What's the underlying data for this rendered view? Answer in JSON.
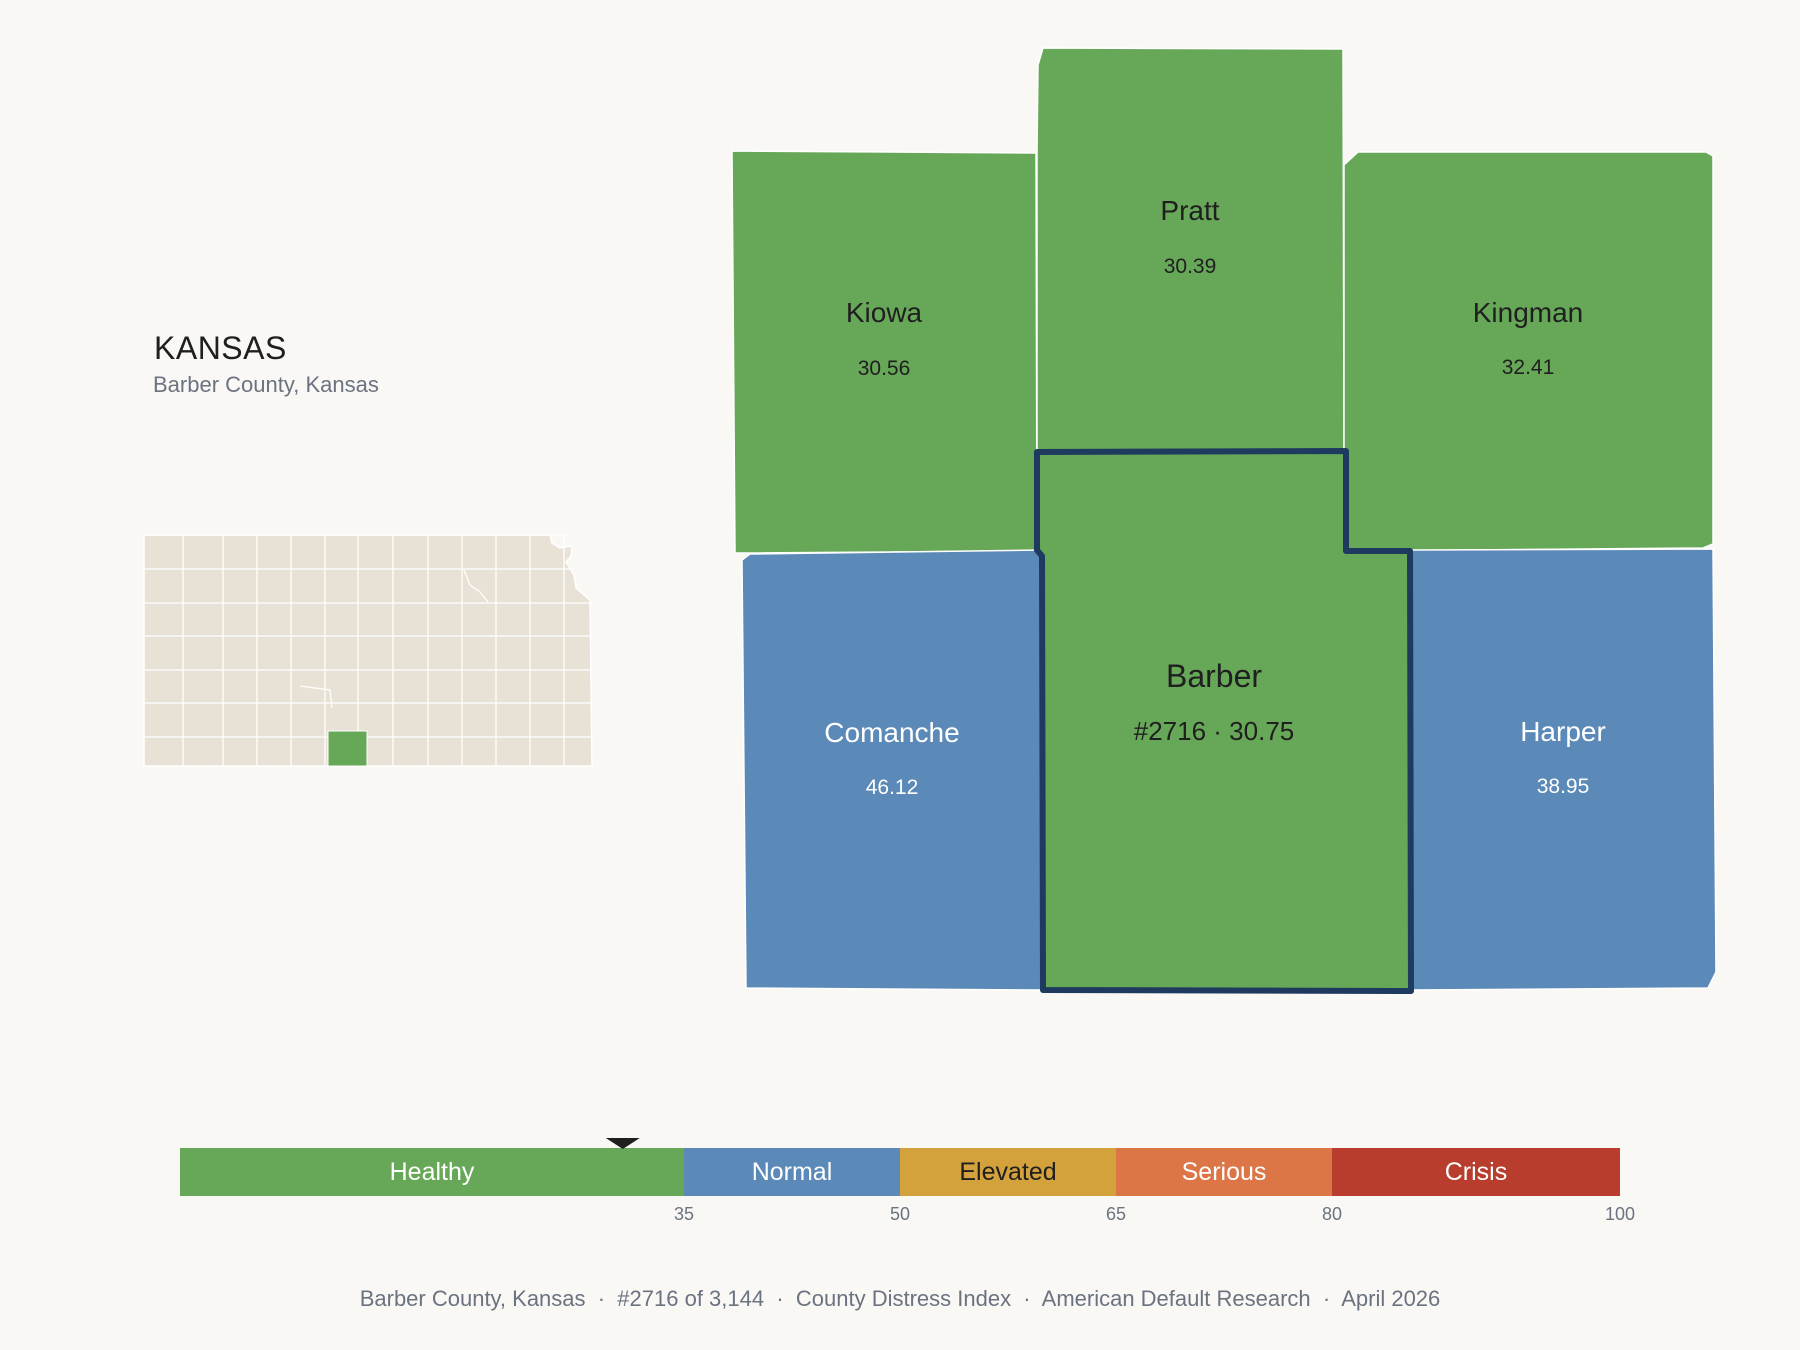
{
  "header": {
    "state": "KANSAS",
    "subtitle": "Barber County, Kansas"
  },
  "colors": {
    "healthy": "#67a758",
    "normal": "#5b89b8",
    "elevated": "#d4a23c",
    "serious": "#dd7647",
    "crisis": "#b83d2c",
    "highlight_border": "#1f3a5f",
    "inset_fill": "#e8e2d6",
    "background": "#f9f8f5"
  },
  "counties": [
    {
      "id": "kiowa",
      "name": "Kiowa",
      "value": "30.56",
      "category": "healthy"
    },
    {
      "id": "pratt",
      "name": "Pratt",
      "value": "30.39",
      "category": "healthy"
    },
    {
      "id": "kingman",
      "name": "Kingman",
      "value": "32.41",
      "category": "healthy"
    },
    {
      "id": "comanche",
      "name": "Comanche",
      "value": "46.12",
      "category": "normal"
    },
    {
      "id": "barber",
      "name": "Barber",
      "value": "#2716 · 30.75",
      "category": "healthy",
      "selected": true
    },
    {
      "id": "harper",
      "name": "Harper",
      "value": "38.95",
      "category": "normal"
    }
  ],
  "scale": {
    "min": 0,
    "max": 100,
    "marker_value": 30.75,
    "bands": [
      {
        "label": "Healthy",
        "from": 0,
        "to": 35,
        "color": "#67a758",
        "text_color": "#ffffff"
      },
      {
        "label": "Normal",
        "from": 35,
        "to": 50,
        "color": "#5b89b8",
        "text_color": "#ffffff"
      },
      {
        "label": "Elevated",
        "from": 50,
        "to": 65,
        "color": "#d4a23c",
        "text_color": "#1f1f1f"
      },
      {
        "label": "Serious",
        "from": 65,
        "to": 80,
        "color": "#dd7647",
        "text_color": "#ffffff"
      },
      {
        "label": "Crisis",
        "from": 80,
        "to": 100,
        "color": "#b83d2c",
        "text_color": "#ffffff"
      }
    ],
    "ticks": [
      "35",
      "50",
      "65",
      "80",
      "100"
    ]
  },
  "footer": {
    "text": "Barber County, Kansas  ·  #2716 of 3,144  ·  County Distress Index  ·  American Default Research  ·  April 2026"
  }
}
